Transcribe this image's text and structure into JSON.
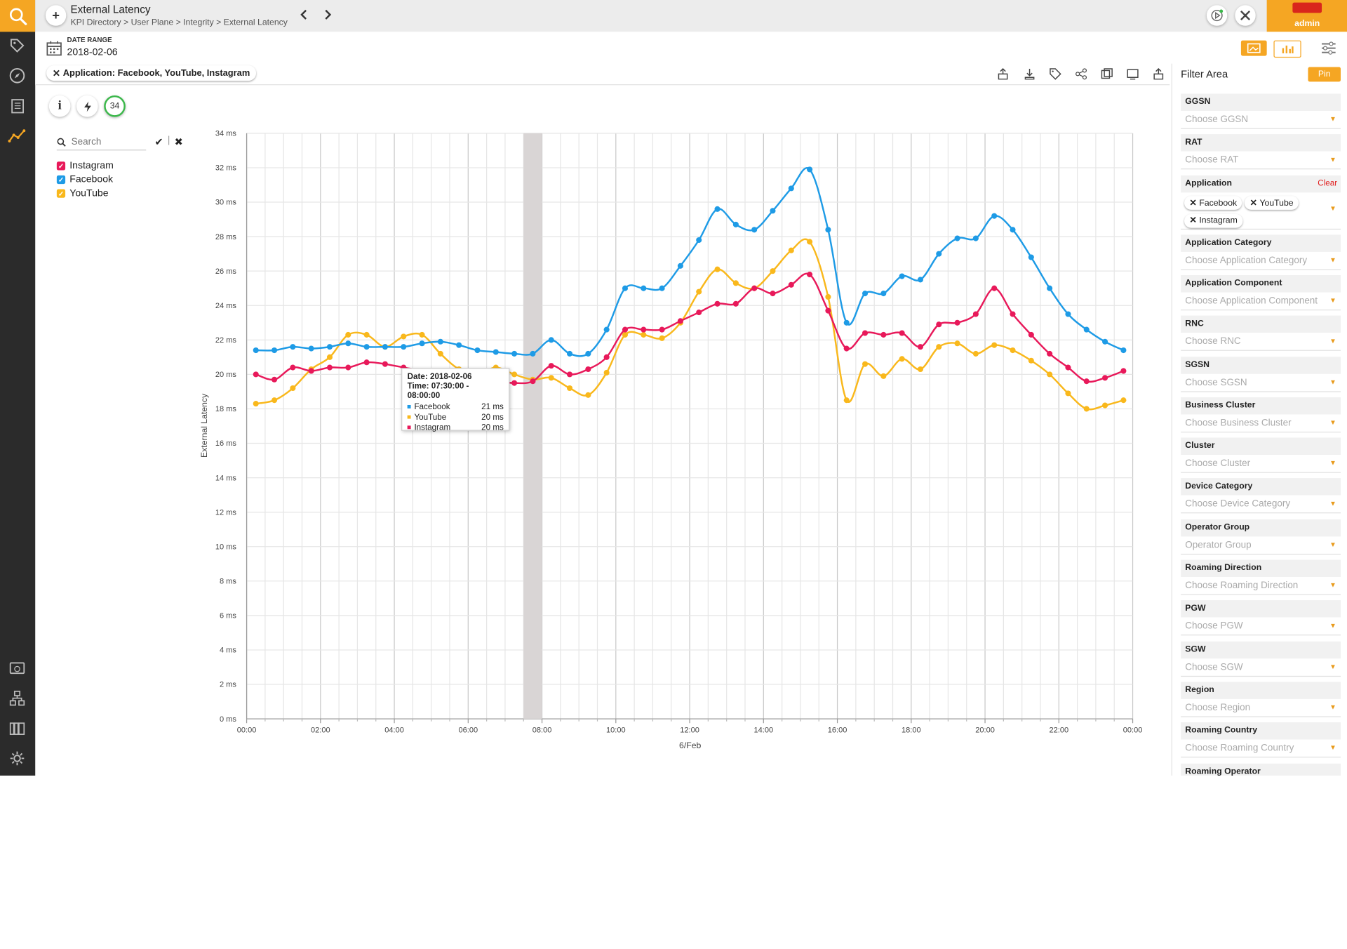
{
  "header": {
    "title": "External Latency",
    "breadcrumb": "KPI Directory > User Plane > Integrity > External Latency",
    "user": "admin"
  },
  "date_range": {
    "label": "DATE RANGE",
    "value": "2018-02-06"
  },
  "active_filter_chip": "Application: Facebook, YouTube, Instagram",
  "info_badge": "34",
  "legend": {
    "search_placeholder": "Search",
    "items": [
      {
        "label": "Instagram",
        "color": "#e8195a",
        "checked": true
      },
      {
        "label": "Facebook",
        "color": "#1e9be6",
        "checked": true
      },
      {
        "label": "YouTube",
        "color": "#f9b81c",
        "checked": true
      }
    ]
  },
  "tooltip": {
    "date": "Date: 2018-02-06",
    "time": "Time: 07:30:00 - 08:00:00",
    "rows": [
      {
        "name": "Facebook",
        "value": "21 ms",
        "color": "#1e9be6"
      },
      {
        "name": "YouTube",
        "value": "20 ms",
        "color": "#f9b81c"
      },
      {
        "name": "Instagram",
        "value": "20 ms",
        "color": "#e8195a"
      }
    ]
  },
  "filter_panel": {
    "title": "Filter Area",
    "pin_label": "Pin",
    "clear_label": "Clear",
    "filters": [
      {
        "label": "GGSN",
        "placeholder": "Choose GGSN"
      },
      {
        "label": "RAT",
        "placeholder": "Choose RAT"
      },
      {
        "label": "Application",
        "chips": [
          "Facebook",
          "YouTube",
          "Instagram"
        ]
      },
      {
        "label": "Application Category",
        "placeholder": "Choose Application Category"
      },
      {
        "label": "Application Component",
        "placeholder": "Choose Application Component"
      },
      {
        "label": "RNC",
        "placeholder": "Choose RNC"
      },
      {
        "label": "SGSN",
        "placeholder": "Choose SGSN"
      },
      {
        "label": "Business Cluster",
        "placeholder": "Choose Business Cluster"
      },
      {
        "label": "Cluster",
        "placeholder": "Choose Cluster"
      },
      {
        "label": "Device Category",
        "placeholder": "Choose Device Category"
      },
      {
        "label": "Operator Group",
        "placeholder": "Operator Group"
      },
      {
        "label": "Roaming Direction",
        "placeholder": "Choose Roaming Direction"
      },
      {
        "label": "PGW",
        "placeholder": "Choose PGW"
      },
      {
        "label": "SGW",
        "placeholder": "Choose SGW"
      },
      {
        "label": "Region",
        "placeholder": "Choose Region"
      },
      {
        "label": "Roaming Country",
        "placeholder": "Choose Roaming Country"
      },
      {
        "label": "Roaming Operator",
        "placeholder": ""
      }
    ]
  },
  "chart_data": {
    "type": "line",
    "title": "",
    "ylabel": "External Latency",
    "xlabel": "6/Feb",
    "ylim": [
      0,
      34
    ],
    "yticks": [
      "0 ms",
      "2 ms",
      "4 ms",
      "6 ms",
      "8 ms",
      "10 ms",
      "12 ms",
      "14 ms",
      "16 ms",
      "18 ms",
      "20 ms",
      "22 ms",
      "24 ms",
      "26 ms",
      "28 ms",
      "30 ms",
      "32 ms",
      "34 ms"
    ],
    "xticks": [
      "00:00",
      "02:00",
      "04:00",
      "06:00",
      "08:00",
      "10:00",
      "12:00",
      "14:00",
      "16:00",
      "18:00",
      "20:00",
      "22:00",
      "00:00"
    ],
    "x_hours": [
      0,
      0.5,
      1,
      1.5,
      2,
      2.5,
      3,
      3.5,
      4,
      4.5,
      5,
      5.5,
      6,
      6.5,
      7,
      7.5,
      8,
      8.5,
      9,
      9.5,
      10,
      10.5,
      11,
      11.5,
      12,
      12.5,
      13,
      13.5,
      14,
      14.5,
      15,
      15.5,
      16,
      16.5,
      17,
      17.5,
      18,
      18.5,
      19,
      19.5,
      20,
      20.5,
      21,
      21.5,
      22,
      22.5,
      23,
      23.5
    ],
    "highlight_interval": [
      7.5,
      8.0
    ],
    "series": [
      {
        "name": "Facebook",
        "color": "#1e9be6",
        "values": [
          21.4,
          21.4,
          21.6,
          21.5,
          21.6,
          21.8,
          21.6,
          21.6,
          21.6,
          21.8,
          21.9,
          21.7,
          21.4,
          21.3,
          21.2,
          21.2,
          22.0,
          21.2,
          21.2,
          22.6,
          25.0,
          25.0,
          25.0,
          26.3,
          27.8,
          29.6,
          28.7,
          28.4,
          29.5,
          30.8,
          31.9,
          28.4,
          23.0,
          24.7,
          24.7,
          25.7,
          25.5,
          27.0,
          27.9,
          27.9,
          29.2,
          28.4,
          26.8,
          25.0,
          23.5,
          22.6,
          21.9,
          21.4
        ]
      },
      {
        "name": "YouTube",
        "color": "#f9b81c",
        "values": [
          18.3,
          18.5,
          19.2,
          20.3,
          21.0,
          22.3,
          22.3,
          21.6,
          22.2,
          22.3,
          21.2,
          20.3,
          20.0,
          20.4,
          20.0,
          19.7,
          19.8,
          19.2,
          18.8,
          20.1,
          22.3,
          22.3,
          22.1,
          23.0,
          24.8,
          26.1,
          25.3,
          25.0,
          26.0,
          27.2,
          27.7,
          24.5,
          18.5,
          20.6,
          19.9,
          20.9,
          20.3,
          21.6,
          21.8,
          21.2,
          21.7,
          21.4,
          20.8,
          20.0,
          18.9,
          18.0,
          18.2,
          18.5
        ]
      },
      {
        "name": "Instagram",
        "color": "#e8195a",
        "values": [
          20.0,
          19.7,
          20.4,
          20.2,
          20.4,
          20.4,
          20.7,
          20.6,
          20.4,
          20.2,
          19.9,
          19.8,
          19.6,
          19.6,
          19.5,
          19.6,
          20.5,
          20.0,
          20.3,
          21.0,
          22.6,
          22.6,
          22.6,
          23.1,
          23.6,
          24.1,
          24.1,
          25.0,
          24.7,
          25.2,
          25.8,
          23.7,
          21.5,
          22.4,
          22.3,
          22.4,
          21.6,
          22.9,
          23.0,
          23.5,
          25.0,
          23.5,
          22.3,
          21.2,
          20.4,
          19.6,
          19.8,
          20.2
        ]
      }
    ]
  }
}
